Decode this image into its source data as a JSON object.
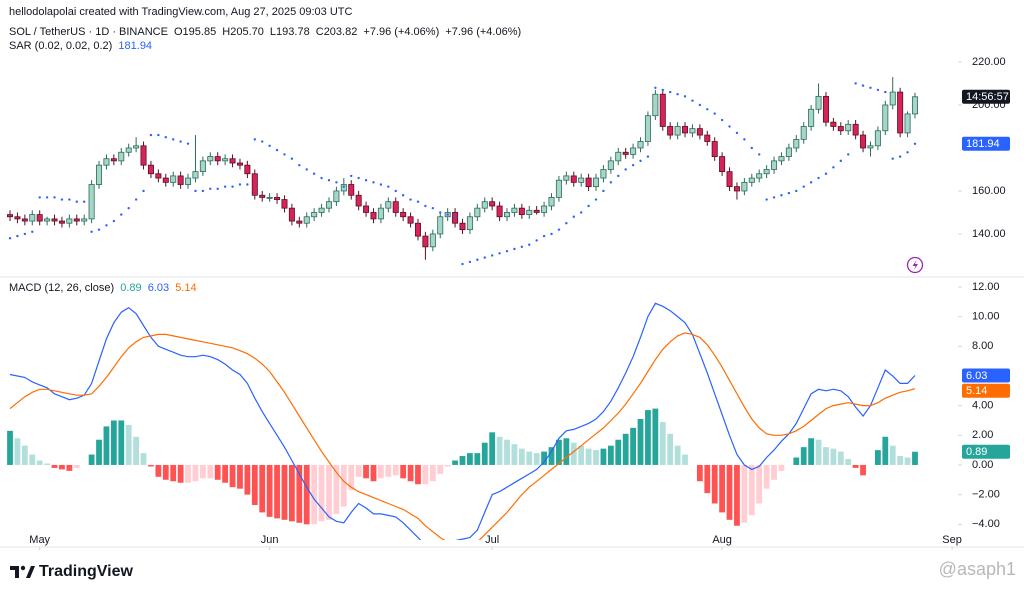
{
  "header": {
    "credit": "hellodolapolai created with TradingView.com, Aug 27, 2025 09:03 UTC",
    "symbol": "SOL / TetherUS · 1D · BINANCE",
    "ohlc": [
      "O195.85",
      "H205.70",
      "L193.78",
      "C203.82",
      "+7.96 (+4.06%)",
      "+7.96 (+4.06%)"
    ]
  },
  "footer": {
    "brand": "TradingView",
    "watermark": "@asaph1"
  },
  "chart_data": [
    {
      "type": "candlestick",
      "color_up": "#a5d6c8",
      "color_down": "#d8235a",
      "countdown": "14:56:57",
      "ylim": [
        122.3,
        227.9
      ],
      "yticks": [
        {
          "value": 140,
          "label": "140.00"
        },
        {
          "value": 160,
          "label": "160.00"
        },
        {
          "value": 200,
          "label": "200.00"
        },
        {
          "value": 220,
          "label": "220.00"
        }
      ],
      "open": [
        149,
        148,
        147,
        146,
        149,
        146,
        147,
        146,
        145,
        147,
        146,
        147,
        163,
        172,
        175,
        174,
        178,
        180,
        181,
        172,
        168,
        166,
        164,
        167,
        163,
        166,
        169,
        174,
        176,
        174,
        175,
        173,
        172,
        168,
        158,
        157,
        157,
        156,
        152,
        146,
        145,
        148,
        150,
        152,
        155,
        160,
        163,
        158,
        153,
        150,
        147,
        152,
        155,
        150,
        148,
        145,
        139,
        134,
        140,
        148,
        150,
        145,
        142,
        148,
        152,
        155,
        153,
        148,
        150,
        152,
        149,
        151,
        150,
        153,
        157,
        165,
        167,
        164,
        166,
        162,
        166,
        170,
        174,
        178,
        177,
        180,
        183,
        195,
        205,
        190,
        186,
        190,
        187,
        189,
        186,
        183,
        176,
        169,
        162,
        160,
        164,
        166,
        168,
        170,
        174,
        176,
        180,
        184,
        190,
        198,
        204,
        192,
        190,
        188,
        191,
        186,
        180,
        181,
        188,
        200,
        206,
        187,
        195.85
      ],
      "high": [
        151,
        150,
        149,
        151,
        151,
        148,
        149,
        148,
        149,
        149,
        149,
        165,
        174,
        177,
        177,
        180,
        182,
        185,
        183,
        174,
        170,
        168,
        169,
        169,
        168,
        186,
        176,
        178,
        178,
        177,
        177,
        175,
        174,
        170,
        160,
        159,
        159,
        158,
        154,
        148,
        150,
        152,
        154,
        157,
        162,
        166,
        165,
        160,
        155,
        152,
        154,
        157,
        157,
        152,
        150,
        147,
        141,
        142,
        150,
        152,
        152,
        147,
        150,
        154,
        157,
        157,
        155,
        152,
        154,
        154,
        153,
        153,
        155,
        159,
        167,
        169,
        169,
        168,
        168,
        168,
        172,
        176,
        180,
        180,
        182,
        185,
        197,
        207,
        207,
        192,
        192,
        192,
        191,
        191,
        188,
        185,
        178,
        171,
        164,
        166,
        168,
        170,
        172,
        176,
        178,
        182,
        186,
        192,
        200,
        210,
        206,
        194,
        192,
        193,
        193,
        188,
        183,
        190,
        202,
        213,
        208,
        197,
        205.7
      ],
      "low": [
        146,
        145,
        144,
        144,
        144,
        144,
        144,
        143,
        143,
        144,
        144,
        145,
        161,
        170,
        172,
        172,
        176,
        178,
        170,
        166,
        164,
        162,
        162,
        161,
        161,
        164,
        167,
        172,
        172,
        172,
        171,
        170,
        166,
        156,
        155,
        155,
        154,
        150,
        144,
        143,
        143,
        146,
        148,
        150,
        153,
        158,
        156,
        151,
        148,
        145,
        145,
        150,
        148,
        146,
        143,
        137,
        128,
        132,
        138,
        146,
        143,
        140,
        140,
        146,
        150,
        151,
        146,
        146,
        148,
        147,
        147,
        149,
        148,
        151,
        155,
        163,
        162,
        162,
        160,
        160,
        164,
        168,
        172,
        175,
        175,
        178,
        181,
        193,
        188,
        184,
        184,
        185,
        185,
        184,
        181,
        174,
        167,
        160,
        156,
        158,
        162,
        164,
        166,
        168,
        172,
        174,
        178,
        182,
        188,
        196,
        190,
        188,
        186,
        186,
        184,
        178,
        176,
        179,
        186,
        198,
        185,
        185,
        193.78
      ],
      "close": [
        148,
        147,
        146,
        149,
        146,
        147,
        146,
        145,
        147,
        146,
        147,
        163,
        172,
        175,
        174,
        178,
        180,
        181,
        172,
        168,
        166,
        164,
        167,
        163,
        166,
        169,
        174,
        176,
        174,
        175,
        173,
        172,
        168,
        158,
        157,
        157,
        156,
        152,
        146,
        145,
        148,
        150,
        152,
        155,
        160,
        163,
        158,
        153,
        150,
        147,
        152,
        155,
        150,
        148,
        145,
        139,
        134,
        140,
        148,
        150,
        145,
        142,
        148,
        152,
        155,
        153,
        148,
        150,
        152,
        149,
        151,
        150,
        153,
        157,
        165,
        167,
        164,
        166,
        162,
        166,
        170,
        174,
        178,
        177,
        180,
        183,
        195,
        205,
        190,
        186,
        190,
        187,
        189,
        186,
        183,
        176,
        169,
        162,
        160,
        164,
        166,
        168,
        170,
        174,
        176,
        180,
        184,
        190,
        198,
        204,
        192,
        190,
        188,
        191,
        186,
        180,
        181,
        188,
        200,
        206,
        187,
        195.85,
        203.82
      ],
      "sar": {
        "name": "SAR (0.02, 0.02, 0.2)",
        "color": "#2962ff",
        "values": [
          138,
          139,
          140,
          141,
          157,
          157,
          157,
          156,
          156,
          155,
          155,
          141,
          142,
          144,
          146,
          149,
          152,
          156,
          160,
          186,
          186,
          185,
          184,
          183,
          182,
          160,
          160,
          161,
          161,
          162,
          162,
          163,
          163,
          184,
          183,
          181,
          179,
          177,
          175,
          172,
          170,
          168,
          166,
          165,
          164,
          162,
          167,
          166,
          165,
          164,
          163,
          162,
          160,
          158,
          156,
          155,
          153,
          152,
          150,
          149,
          148,
          126,
          127,
          128,
          129,
          130,
          131,
          132,
          133,
          134,
          135,
          137,
          139,
          140,
          142,
          145,
          148,
          150,
          153,
          156,
          160,
          164,
          167,
          170,
          172,
          174,
          176,
          208,
          207,
          206,
          205,
          204,
          202,
          200,
          198,
          196,
          193,
          190,
          187,
          184,
          180,
          177,
          156,
          157,
          158,
          159,
          160,
          162,
          164,
          166,
          168,
          171,
          174,
          177,
          210,
          209,
          208,
          207,
          206,
          175,
          176,
          178,
          181.94
        ]
      }
    },
    {
      "type": "macd",
      "title": "MACD (12, 26, close)",
      "ylim": [
        -5.06,
        12.47
      ],
      "yticks": [
        {
          "value": -4,
          "label": "−4.00"
        },
        {
          "value": -2,
          "label": "−2.00"
        },
        {
          "value": 0,
          "label": "0.00"
        },
        {
          "value": 2,
          "label": "2.00"
        },
        {
          "value": 4,
          "label": "4.00"
        },
        {
          "value": 8,
          "label": "8.00"
        },
        {
          "value": 10,
          "label": "10.00"
        },
        {
          "value": 12,
          "label": "12.00"
        }
      ],
      "xlim": [
        -1.35,
        127.8
      ],
      "xticks": [
        {
          "value": 4,
          "label": "May"
        },
        {
          "value": 35,
          "label": "Jun"
        },
        {
          "value": 65,
          "label": "Jul"
        },
        {
          "value": 96,
          "label": "Aug"
        },
        {
          "value": 127,
          "label": "Sep"
        }
      ],
      "histogram": {
        "colors": [
          "#26a69a",
          "#b2dfdb",
          "#ff5252",
          "#ffcdd2"
        ],
        "legend_color": "#26a69a",
        "values": [
          2.3,
          1.8,
          1.3,
          0.7,
          0.3,
          0.1,
          -0.2,
          -0.3,
          -0.4,
          -0.2,
          0.0,
          0.7,
          1.7,
          2.6,
          3.0,
          3.0,
          2.7,
          1.9,
          0.8,
          -0.1,
          -0.8,
          -1.0,
          -1.1,
          -1.2,
          -1.2,
          -1.1,
          -0.9,
          -0.9,
          -1.0,
          -1.2,
          -1.5,
          -1.6,
          -2.0,
          -2.7,
          -3.2,
          -3.5,
          -3.6,
          -3.7,
          -3.8,
          -3.9,
          -4.0,
          -4.0,
          -3.8,
          -3.7,
          -3.3,
          -2.8,
          -1.7,
          -0.8,
          -0.9,
          -1.1,
          -0.9,
          -0.8,
          -0.7,
          -0.9,
          -1.1,
          -1.3,
          -1.3,
          -1.1,
          -0.6,
          -0.1,
          0.3,
          0.6,
          0.8,
          0.8,
          1.5,
          2.2,
          1.9,
          1.7,
          1.4,
          1.1,
          0.9,
          0.8,
          0.9,
          1.2,
          1.7,
          1.8,
          1.5,
          1.3,
          1.1,
          1.0,
          1.1,
          1.3,
          1.7,
          2.1,
          2.5,
          3.1,
          3.7,
          3.8,
          2.9,
          2.1,
          1.3,
          0.7,
          0.0,
          -1.1,
          -1.9,
          -2.6,
          -3.2,
          -3.7,
          -4.1,
          -3.9,
          -3.4,
          -2.6,
          -1.6,
          -1.0,
          -0.4,
          0.0,
          0.5,
          1.2,
          1.8,
          1.7,
          1.2,
          1.1,
          0.9,
          0.4,
          -0.2,
          -0.7,
          0.0,
          1.0,
          1.9,
          1.3,
          0.6,
          0.5,
          0.89
        ]
      },
      "macd": {
        "color": "#2962ff",
        "values": [
          6.1,
          6.0,
          5.9,
          5.6,
          5.4,
          5.2,
          4.8,
          4.6,
          4.4,
          4.5,
          4.7,
          5.5,
          7.0,
          8.5,
          9.6,
          10.3,
          10.6,
          10.2,
          9.4,
          8.6,
          8.0,
          7.8,
          7.6,
          7.4,
          7.3,
          7.3,
          7.4,
          7.3,
          7.1,
          6.8,
          6.4,
          6.1,
          5.5,
          4.5,
          3.6,
          2.8,
          2.0,
          1.2,
          0.3,
          -0.6,
          -1.5,
          -2.3,
          -2.9,
          -3.5,
          -3.8,
          -3.9,
          -3.2,
          -2.6,
          -2.9,
          -3.3,
          -3.3,
          -3.4,
          -3.5,
          -3.9,
          -4.4,
          -4.9,
          -5.4,
          -5.6,
          -5.5,
          -5.3,
          -5.1,
          -5.0,
          -4.9,
          -4.4,
          -3.2,
          -2.0,
          -1.8,
          -1.5,
          -1.2,
          -0.9,
          -0.6,
          -0.3,
          0.2,
          0.9,
          1.8,
          2.3,
          2.4,
          2.6,
          2.8,
          3.1,
          3.6,
          4.3,
          5.2,
          6.2,
          7.3,
          8.6,
          10.0,
          10.9,
          10.7,
          10.4,
          10.0,
          9.6,
          8.8,
          7.5,
          6.2,
          4.8,
          3.4,
          2.0,
          0.7,
          0.0,
          -0.3,
          -0.1,
          0.5,
          1.0,
          1.6,
          2.1,
          2.8,
          3.8,
          4.8,
          5.1,
          5.0,
          5.1,
          5.0,
          4.6,
          3.9,
          3.3,
          4.0,
          5.2,
          6.4,
          6.0,
          5.5,
          5.5,
          6.03
        ]
      },
      "signal": {
        "color": "#ff6d00",
        "values": [
          3.8,
          4.2,
          4.6,
          4.9,
          5.1,
          5.1,
          5.0,
          4.9,
          4.8,
          4.7,
          4.7,
          4.8,
          5.3,
          5.9,
          6.6,
          7.3,
          7.9,
          8.3,
          8.6,
          8.7,
          8.8,
          8.8,
          8.7,
          8.6,
          8.5,
          8.4,
          8.3,
          8.2,
          8.1,
          8.0,
          7.9,
          7.7,
          7.5,
          7.2,
          6.8,
          6.3,
          5.6,
          4.9,
          4.1,
          3.3,
          2.5,
          1.7,
          0.9,
          0.2,
          -0.5,
          -1.1,
          -1.5,
          -1.8,
          -2.0,
          -2.2,
          -2.4,
          -2.6,
          -2.8,
          -3.0,
          -3.3,
          -3.6,
          -4.1,
          -4.5,
          -4.9,
          -5.2,
          -5.4,
          -5.6,
          -5.7,
          -5.2,
          -4.7,
          -4.2,
          -3.7,
          -3.2,
          -2.6,
          -2.0,
          -1.5,
          -1.1,
          -0.7,
          -0.3,
          0.1,
          0.5,
          0.9,
          1.3,
          1.7,
          2.1,
          2.5,
          3.0,
          3.5,
          4.1,
          4.8,
          5.5,
          6.3,
          7.1,
          7.8,
          8.3,
          8.7,
          8.9,
          8.8,
          8.6,
          8.1,
          7.4,
          6.6,
          5.7,
          4.8,
          3.9,
          3.1,
          2.5,
          2.1,
          2.0,
          2.0,
          2.1,
          2.3,
          2.6,
          3.0,
          3.4,
          3.8,
          4.0,
          4.1,
          4.2,
          4.1,
          4.0,
          4.0,
          4.2,
          4.5,
          4.7,
          4.9,
          5.0,
          5.14
        ]
      }
    }
  ]
}
